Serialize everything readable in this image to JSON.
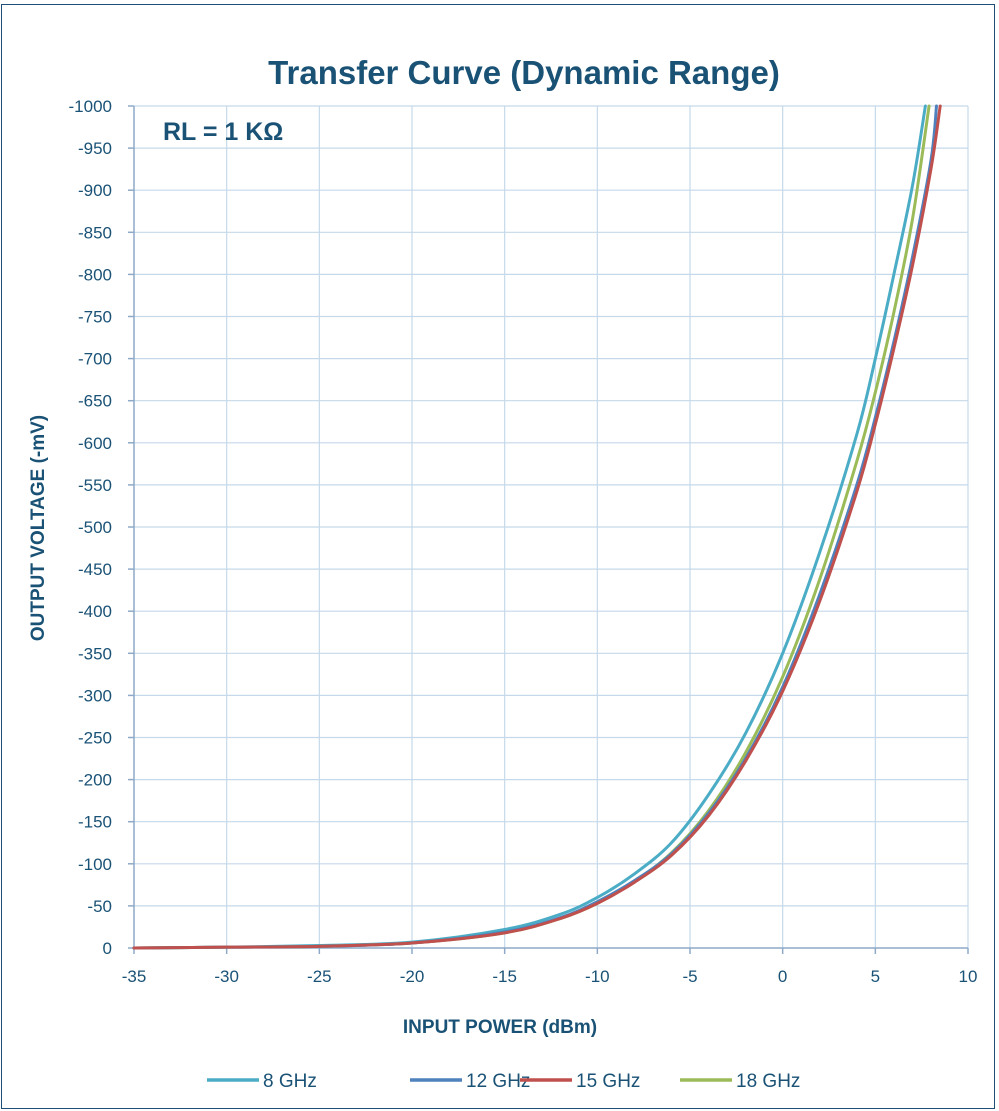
{
  "chart_data": {
    "type": "line",
    "title": "Transfer Curve (Dynamic  Range)",
    "annotation": "RL = 1 KΩ",
    "xlabel": "INPUT POWER (dBm)",
    "ylabel": "OUTPUT VOLTAGE (-mV)",
    "xlim": [
      -35,
      10
    ],
    "ylim": [
      0,
      -1000
    ],
    "x_ticks": [
      -35,
      -30,
      -25,
      -20,
      -15,
      -10,
      -5,
      0,
      5,
      10
    ],
    "y_ticks": [
      0,
      -50,
      -100,
      -150,
      -200,
      -250,
      -300,
      -350,
      -400,
      -450,
      -500,
      -550,
      -600,
      -650,
      -700,
      -750,
      -800,
      -850,
      -900,
      -950,
      -1000
    ],
    "grid": true,
    "legend_position": "bottom",
    "series": [
      {
        "name": "8 GHz",
        "color": "#4bacc6",
        "x": [
          -35,
          -30,
          -25,
          -20,
          -15,
          -12,
          -10,
          -8,
          -6,
          -4,
          -2,
          0,
          2,
          4,
          5,
          6,
          7,
          7.7
        ],
        "y": [
          0,
          -1,
          -3,
          -7,
          -22,
          -40,
          -60,
          -88,
          -125,
          -182,
          -255,
          -350,
          -470,
          -610,
          -700,
          -800,
          -905,
          -1000
        ]
      },
      {
        "name": "12 GHz",
        "color": "#4f81bd",
        "x": [
          -35,
          -30,
          -25,
          -20,
          -15,
          -12,
          -10,
          -8,
          -6,
          -4,
          -2,
          0,
          2,
          4,
          5,
          6,
          7,
          8,
          8.3
        ],
        "y": [
          0,
          -1,
          -2,
          -6,
          -19,
          -36,
          -55,
          -80,
          -112,
          -160,
          -225,
          -310,
          -420,
          -550,
          -630,
          -720,
          -820,
          -935,
          -1000
        ]
      },
      {
        "name": "15 GHz",
        "color": "#c0504d",
        "x": [
          -35,
          -30,
          -25,
          -20,
          -15,
          -12,
          -10,
          -8,
          -6,
          -4,
          -2,
          0,
          2,
          4,
          5,
          6,
          7,
          8,
          8.5
        ],
        "y": [
          0,
          -1,
          -2,
          -6,
          -18,
          -35,
          -53,
          -78,
          -110,
          -157,
          -222,
          -305,
          -412,
          -542,
          -622,
          -712,
          -810,
          -925,
          -1000
        ]
      },
      {
        "name": "18 GHz",
        "color": "#9bbb59",
        "x": [
          -35,
          -30,
          -25,
          -20,
          -15,
          -12,
          -10,
          -8,
          -6,
          -4,
          -2,
          0,
          2,
          4,
          5,
          6,
          7,
          7.9
        ],
        "y": [
          0,
          -1,
          -2,
          -6,
          -18,
          -35,
          -53,
          -79,
          -113,
          -163,
          -232,
          -322,
          -438,
          -578,
          -660,
          -755,
          -865,
          -1000
        ]
      }
    ]
  }
}
